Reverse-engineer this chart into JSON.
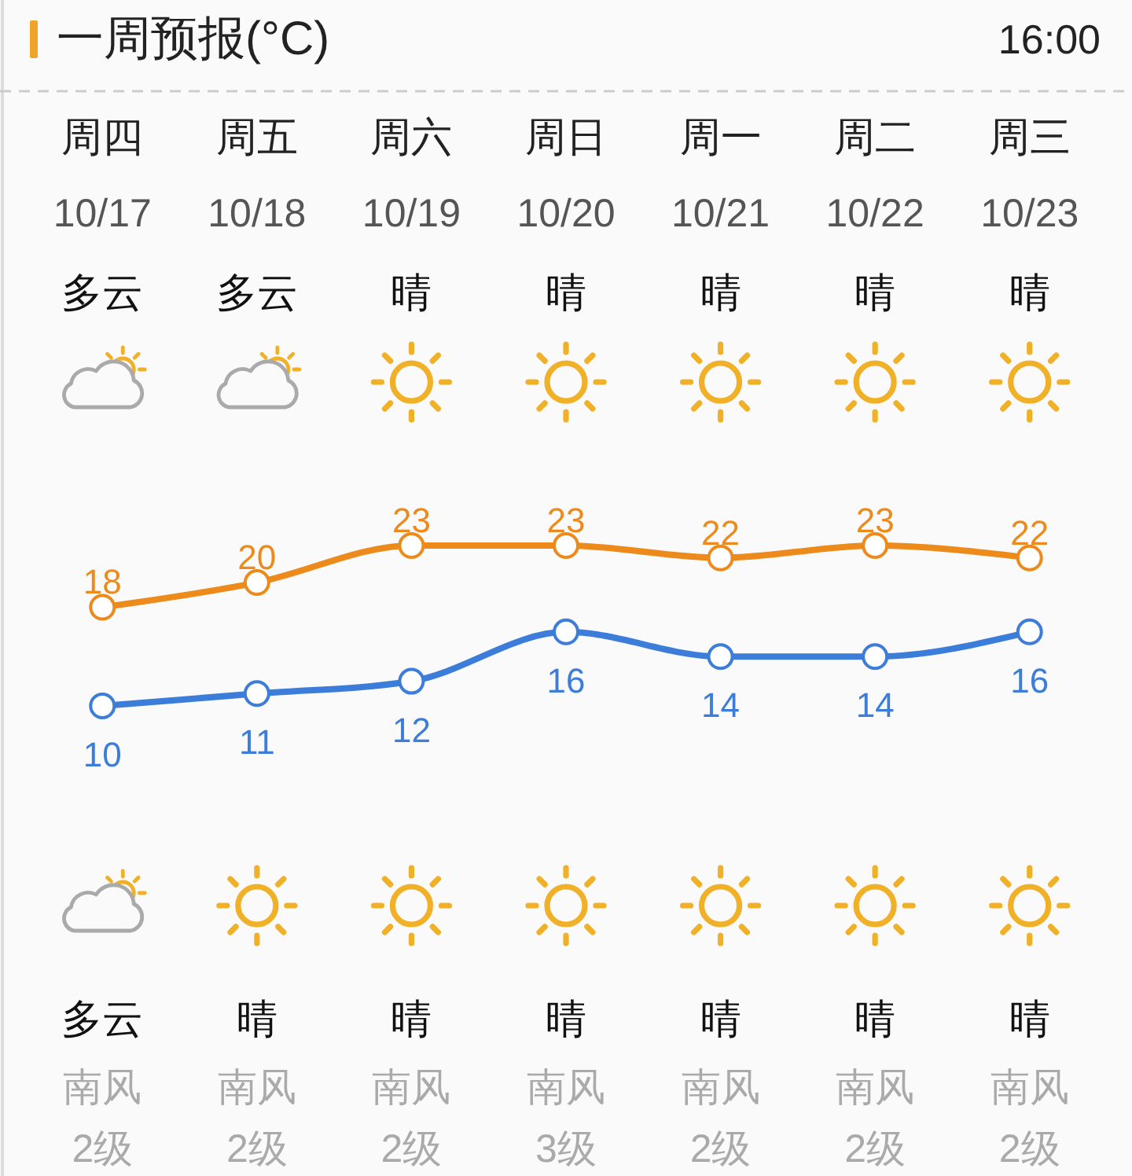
{
  "chart_data": {
    "type": "line",
    "title": "一周预报(°C)",
    "subtitle": "16:00",
    "categories": [
      "周四",
      "周五",
      "周六",
      "周日",
      "周一",
      "周二",
      "周三"
    ],
    "series": [
      {
        "color": "#ec8a1c",
        "values": [
          18,
          20,
          23,
          23,
          22,
          23,
          22
        ]
      },
      {
        "color": "#3b7dd8",
        "values": [
          10,
          11,
          12,
          16,
          14,
          14,
          16
        ]
      }
    ],
    "marker": "circle",
    "line_style": "solid",
    "data_labels": true,
    "annotations": [
      "10/17",
      "10/18",
      "10/19",
      "10/20",
      "10/21",
      "10/22",
      "10/23",
      "多云",
      "多云",
      "晴",
      "晴",
      "晴",
      "晴",
      "晴",
      "多云",
      "晴",
      "晴",
      "晴",
      "晴",
      "晴",
      "晴",
      "南风",
      "南风",
      "南风",
      "南风",
      "南风",
      "南风",
      "南风",
      "2级",
      "2级",
      "2级",
      "3级",
      "2级",
      "2级",
      "2级"
    ]
  }
}
